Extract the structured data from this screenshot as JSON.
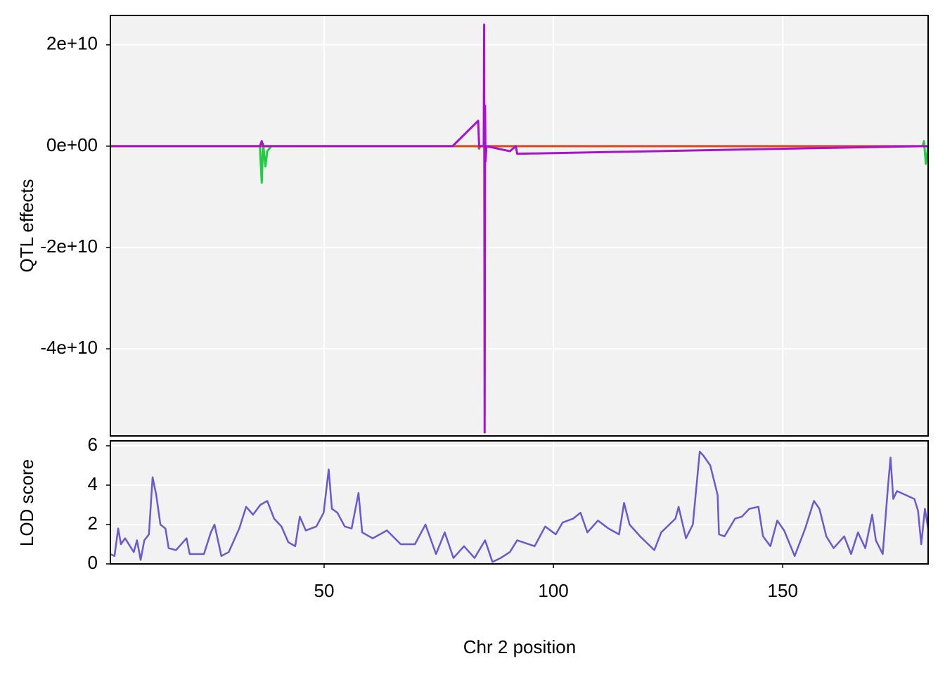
{
  "chart_data": [
    {
      "type": "line",
      "ylabel": "QTL effects",
      "grid": true,
      "xlim": [
        3.4,
        181.7
      ],
      "xticks": [
        50,
        100,
        150
      ],
      "ylim": [
        -57200000000,
        25800000000
      ],
      "yticks": [
        {
          "value": 20000000000,
          "label": "2e+10"
        },
        {
          "value": 0,
          "label": "0e+00"
        },
        {
          "value": -20000000000,
          "label": "-2e+10"
        },
        {
          "value": -40000000000,
          "label": "-4e+10"
        }
      ],
      "x": [
        3.4,
        36.0,
        36.4,
        36.7,
        37.2,
        37.6,
        38.5,
        78.0,
        83.6,
        83.8,
        84.0,
        84.8,
        84.9,
        85.0,
        85.1,
        85.2,
        85.4,
        90.5,
        91.8,
        92.1,
        180.5,
        180.8,
        181.2,
        181.7
      ],
      "series": [
        {
          "color": "#22cc44",
          "values": [
            0,
            0,
            -7200000000,
            500000000,
            -4000000000,
            -1000000000,
            0,
            0,
            0,
            0,
            0,
            0,
            0,
            0,
            0,
            0,
            0,
            0,
            0,
            0,
            0,
            1000000000,
            -3500000000,
            0
          ]
        },
        {
          "color": "#ee4422",
          "values": [
            0,
            0,
            0,
            0,
            0,
            0,
            0,
            0,
            0,
            -500000000,
            0,
            0,
            0,
            0,
            0,
            0,
            0,
            0,
            0,
            0,
            0,
            0,
            0,
            0
          ]
        },
        {
          "color": "#aa11cc",
          "values": [
            0,
            0,
            1000000000,
            0,
            0,
            0,
            0,
            0,
            5000000000,
            0,
            0,
            0,
            24000000000,
            -56500000000,
            8000000000,
            -3000000000,
            0,
            -1000000000,
            0,
            -1500000000,
            0,
            0,
            0,
            0
          ]
        }
      ]
    },
    {
      "type": "line",
      "xlabel": "Chr 2 position",
      "ylabel": "LOD score",
      "grid": true,
      "xlim": [
        3.4,
        181.7
      ],
      "xticks": [
        50,
        100,
        150
      ],
      "ylim": [
        0,
        6.25
      ],
      "yticks": [
        0,
        2,
        4,
        6
      ],
      "color": "#6a5acd",
      "x": [
        3.4,
        4.3,
        5.1,
        5.7,
        6.6,
        8.5,
        9.2,
        10.0,
        10.8,
        11.8,
        12.6,
        13.4,
        14.3,
        15.4,
        16.1,
        17.7,
        20.0,
        20.7,
        23.8,
        25.3,
        26.1,
        27.6,
        29.2,
        31.5,
        33.0,
        34.5,
        36.1,
        37.6,
        39.1,
        40.7,
        42.2,
        43.7,
        44.7,
        46.0,
        48.3,
        49.9,
        51.0,
        51.7,
        52.9,
        54.5,
        56.0,
        57.5,
        58.3,
        60.6,
        63.7,
        66.7,
        69.8,
        72.1,
        74.4,
        76.3,
        78.2,
        80.5,
        82.8,
        85.1,
        86.7,
        88.5,
        90.5,
        92.1,
        95.9,
        98.2,
        100.5,
        102.0,
        104.3,
        105.9,
        107.4,
        109.7,
        112.0,
        114.3,
        115.4,
        116.6,
        118.9,
        122.0,
        123.5,
        126.6,
        127.3,
        128.9,
        130.4,
        131.9,
        132.7,
        134.2,
        135.8,
        136.1,
        137.3,
        139.6,
        141.1,
        142.7,
        144.7,
        145.7,
        147.3,
        148.8,
        150.3,
        152.6,
        154.9,
        156.8,
        158.0,
        159.5,
        161.1,
        163.4,
        164.9,
        166.4,
        168.0,
        169.5,
        170.3,
        171.8,
        172.9,
        173.5,
        174.1,
        174.9,
        178.7,
        179.5,
        180.2,
        181.0,
        181.7
      ],
      "values": [
        0.5,
        0.4,
        1.8,
        1.0,
        1.3,
        0.6,
        1.2,
        0.2,
        1.2,
        1.5,
        4.4,
        3.5,
        2.0,
        1.8,
        0.8,
        0.7,
        1.3,
        0.5,
        0.5,
        1.6,
        2.0,
        0.4,
        0.6,
        1.8,
        2.9,
        2.5,
        3.0,
        3.2,
        2.3,
        1.9,
        1.1,
        0.9,
        2.4,
        1.7,
        1.9,
        2.6,
        4.8,
        2.8,
        2.6,
        1.9,
        1.8,
        3.6,
        1.6,
        1.3,
        1.7,
        1.0,
        1.0,
        2.0,
        0.5,
        1.6,
        0.3,
        0.9,
        0.3,
        1.2,
        0.1,
        0.3,
        0.6,
        1.2,
        0.9,
        1.9,
        1.5,
        2.1,
        2.3,
        2.6,
        1.6,
        2.2,
        1.8,
        1.5,
        3.1,
        2.0,
        1.4,
        0.7,
        1.6,
        2.3,
        2.9,
        1.3,
        2.0,
        5.7,
        5.5,
        5.0,
        3.5,
        1.5,
        1.4,
        2.3,
        2.4,
        2.8,
        2.9,
        1.4,
        0.9,
        2.2,
        1.7,
        0.4,
        1.8,
        3.2,
        2.8,
        1.4,
        0.8,
        1.4,
        0.5,
        1.6,
        0.8,
        2.5,
        1.2,
        0.5,
        3.8,
        5.4,
        3.3,
        3.7,
        3.3,
        2.7,
        1.0,
        2.8,
        1.8
      ]
    }
  ]
}
